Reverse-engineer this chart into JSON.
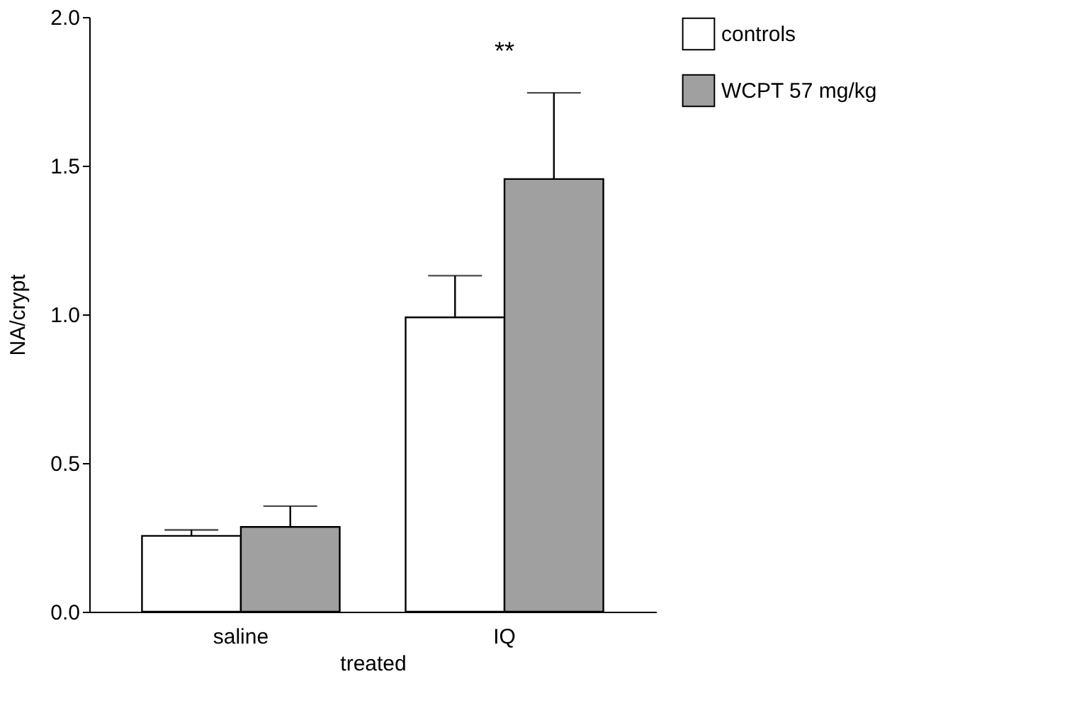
{
  "chart_data": {
    "type": "bar",
    "xlabel": "treated",
    "ylabel": "NA/crypt",
    "categories": [
      "saline",
      "IQ"
    ],
    "series": [
      {
        "name": "controls",
        "color": "#ffffff",
        "values": [
          0.255,
          0.99
        ],
        "errors": [
          [
            0.255,
            0.275
          ],
          [
            0.99,
            1.13
          ]
        ]
      },
      {
        "name": "WCPT 57 mg/kg",
        "color": "#a0a0a0",
        "values": [
          0.285,
          1.455
        ],
        "errors": [
          [
            0.285,
            0.355
          ],
          [
            1.455,
            1.745
          ]
        ]
      }
    ],
    "ylim": [
      0,
      2.0
    ],
    "yticks": [
      {
        "value": 0,
        "label": "0.0"
      },
      0.5,
      {
        "value": 1,
        "label": "1.0"
      },
      1.5,
      {
        "value": 2,
        "label": "2.0"
      }
    ],
    "annotations": [
      "**"
    ],
    "grid": false,
    "legend": "top right"
  }
}
